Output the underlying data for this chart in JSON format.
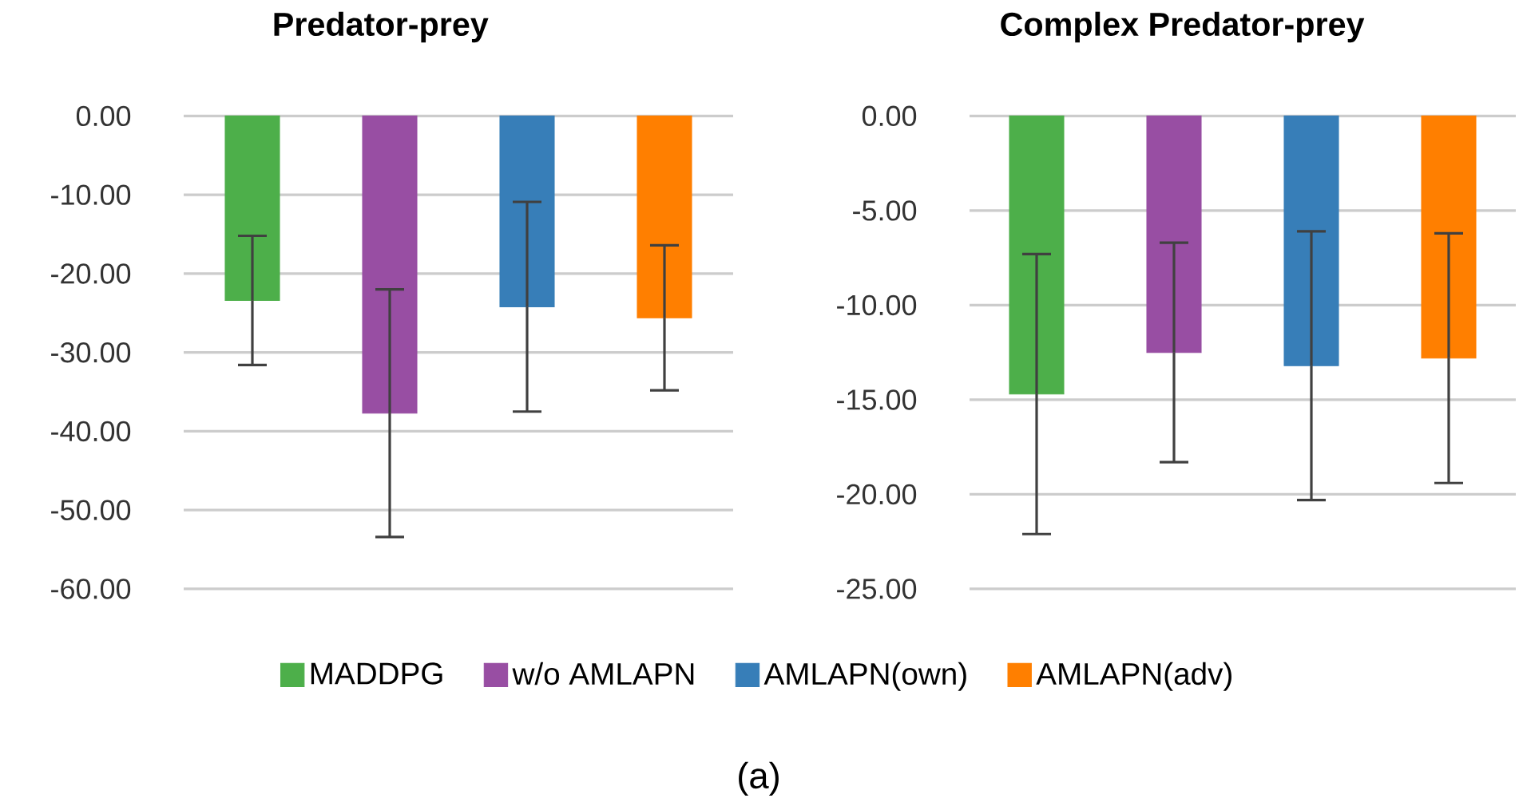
{
  "chart_data": [
    {
      "type": "bar",
      "title": "Predator-prey",
      "categories": [
        null
      ],
      "grid": "y",
      "legend": "bottom",
      "ylim": [
        -60,
        0
      ],
      "yticks": [
        {
          "value": 0,
          "label": "0.00"
        },
        {
          "value": -10,
          "label": "-10.00"
        },
        {
          "value": -20,
          "label": "-20.00"
        },
        {
          "value": -30,
          "label": "-30.00"
        },
        {
          "value": -40,
          "label": "-40.00"
        },
        {
          "value": -50,
          "label": "-50.00"
        },
        {
          "value": -60,
          "label": "-60.00"
        }
      ],
      "annotations": [
        "(a)"
      ],
      "series": [
        {
          "name": "MADDPG",
          "color": "#4daf4a",
          "values": [
            -23.4
          ],
          "errors": [
            8.2
          ]
        },
        {
          "name": "w/o AMLAPN",
          "color": "#984ea3",
          "values": [
            -37.7
          ],
          "errors": [
            15.7
          ]
        },
        {
          "name": "AMLAPN(own)",
          "color": "#377eb8",
          "values": [
            -24.2
          ],
          "errors": [
            13.3
          ]
        },
        {
          "name": "AMLAPN(adv)",
          "color": "#ff7f00",
          "values": [
            -25.6
          ],
          "errors": [
            9.2
          ]
        }
      ]
    },
    {
      "type": "bar",
      "title": "Complex Predator-prey",
      "categories": [
        null
      ],
      "grid": "y",
      "ylim": [
        -25,
        0
      ],
      "yticks": [
        {
          "value": 0,
          "label": "0.00"
        },
        {
          "value": -5,
          "label": "-5.00"
        },
        {
          "value": -10,
          "label": "-10.00"
        },
        {
          "value": -15,
          "label": "-15.00"
        },
        {
          "value": -20,
          "label": "-20.00"
        },
        {
          "value": -25,
          "label": "-25.00"
        }
      ],
      "series": [
        {
          "color": "#4daf4a",
          "values": [
            -14.7
          ],
          "errors": [
            7.4
          ]
        },
        {
          "color": "#984ea3",
          "values": [
            -12.5
          ],
          "errors": [
            5.8
          ]
        },
        {
          "color": "#377eb8",
          "values": [
            -13.2
          ],
          "errors": [
            7.1
          ]
        },
        {
          "color": "#ff7f00",
          "values": [
            -12.8
          ],
          "errors": [
            6.6
          ]
        }
      ]
    }
  ]
}
